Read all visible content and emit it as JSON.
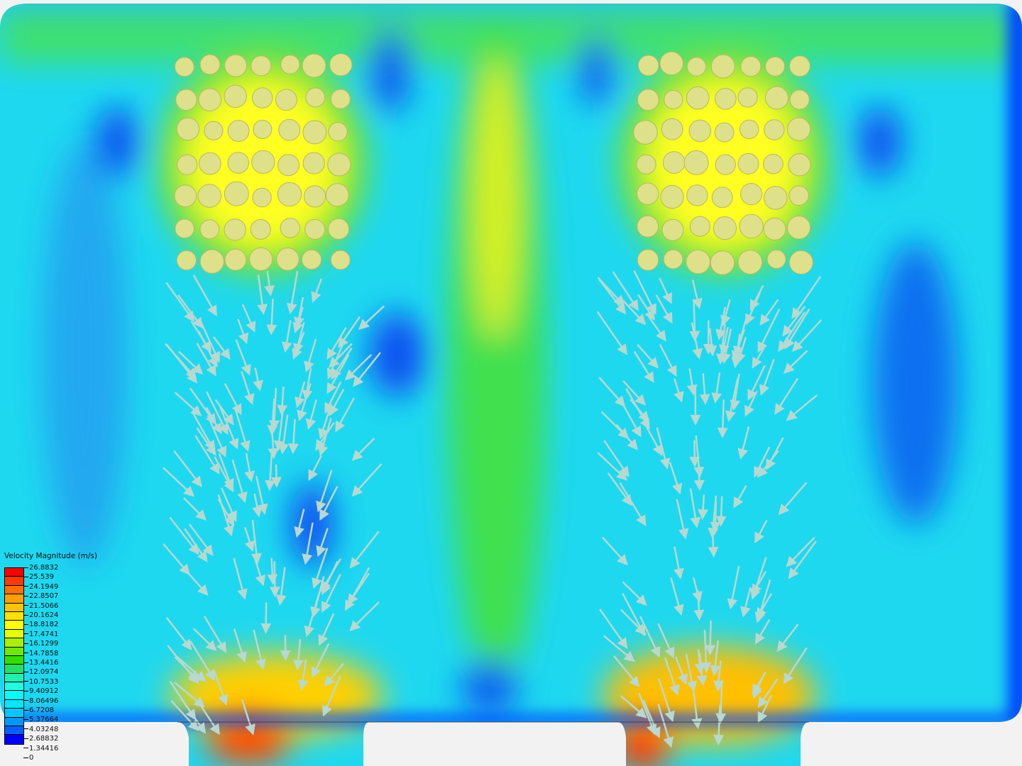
{
  "legend": {
    "title": "Velocity Magnitude (m/s)",
    "ticks": [
      "26.8832",
      "25.539",
      "24.1949",
      "22.8507",
      "21.5066",
      "20.1624",
      "18.8182",
      "17.4741",
      "16.1299",
      "14.7858",
      "13.4416",
      "12.0974",
      "10.7533",
      "9.40912",
      "8.06496",
      "6.7208",
      "5.37664",
      "4.03248",
      "2.68832",
      "1.34416",
      "0"
    ],
    "band_colors": [
      "#ff0000",
      "#ff3a00",
      "#ff7000",
      "#ffa000",
      "#ffc400",
      "#ffe000",
      "#ffff00",
      "#e6ff00",
      "#a8f000",
      "#70e800",
      "#30e000",
      "#20e060",
      "#20f0b0",
      "#20ffe0",
      "#00ffff",
      "#00e8ff",
      "#00c8ff",
      "#0098ff",
      "#0060ff",
      "#0000ff"
    ]
  }
}
